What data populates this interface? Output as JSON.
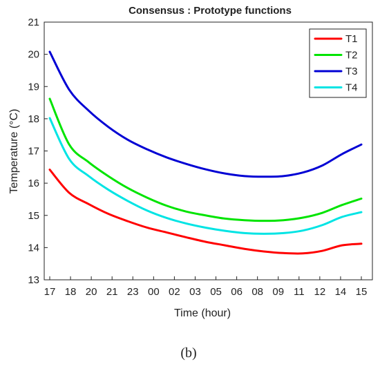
{
  "caption": "(b)",
  "chart_data": {
    "type": "line",
    "title": "Consensus : Prototype functions",
    "xlabel": "Time (hour)",
    "ylabel": "Temperature (°C)",
    "ylim": [
      13,
      21
    ],
    "yticks": [
      13,
      14,
      15,
      16,
      17,
      18,
      19,
      20,
      21
    ],
    "x_tick_labels": [
      "17",
      "18",
      "20",
      "21",
      "23",
      "00",
      "02",
      "03",
      "05",
      "06",
      "08",
      "09",
      "11",
      "12",
      "14",
      "15"
    ],
    "x_sample_positions": [
      0,
      1,
      2,
      3,
      4,
      5,
      6,
      7,
      8,
      9,
      10,
      11,
      12,
      13,
      14,
      15,
      16
    ],
    "xlim": [
      0,
      16
    ],
    "grid": false,
    "legend_position": "top-right",
    "series": [
      {
        "name": "T1",
        "color": "#ff0000",
        "values": [
          16.42,
          15.7,
          15.35,
          15.05,
          14.82,
          14.62,
          14.47,
          14.32,
          14.18,
          14.07,
          13.96,
          13.88,
          13.83,
          13.82,
          13.9,
          14.07,
          14.12
        ]
      },
      {
        "name": "T2",
        "color": "#00e400",
        "values": [
          18.62,
          17.2,
          16.65,
          16.22,
          15.85,
          15.55,
          15.3,
          15.12,
          15.0,
          14.9,
          14.85,
          14.83,
          14.85,
          14.93,
          15.08,
          15.32,
          15.52
        ]
      },
      {
        "name": "T3",
        "color": "#0000d4",
        "values": [
          20.08,
          18.9,
          18.25,
          17.75,
          17.35,
          17.05,
          16.8,
          16.6,
          16.43,
          16.3,
          16.22,
          16.2,
          16.22,
          16.33,
          16.55,
          16.9,
          17.2
        ]
      },
      {
        "name": "T4",
        "color": "#00e4e4",
        "values": [
          18.02,
          16.75,
          16.22,
          15.8,
          15.45,
          15.15,
          14.92,
          14.75,
          14.62,
          14.52,
          14.45,
          14.43,
          14.45,
          14.53,
          14.7,
          14.95,
          15.1
        ]
      }
    ]
  }
}
